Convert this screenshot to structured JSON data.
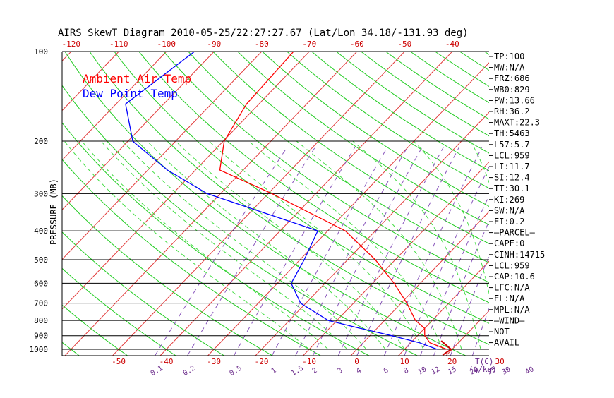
{
  "chart_data": {
    "type": "line",
    "title": "AIRS SkewT Diagram 2010-05-25/22:27:27.67 (Lat/Lon 34.18/-131.93 deg)",
    "ylabel": "PRESSURE (MB)",
    "y_scale": "log-pressure",
    "ylim": [
      1050,
      100
    ],
    "pressure_ticks": [
      100,
      200,
      300,
      400,
      500,
      600,
      700,
      800,
      900,
      1000
    ],
    "temp_ticks_top": [
      -120,
      -110,
      -100,
      -90,
      -80,
      -70,
      -60,
      -50,
      -40
    ],
    "temp_ticks_bottom": [
      -50,
      -40,
      -30,
      -20,
      -10,
      0,
      10,
      20,
      30
    ],
    "temp_axis_unit": "T(C)",
    "mixing_ratio_labels": [
      "0.1",
      "0.2",
      "0.5",
      "1",
      "1.5",
      "2",
      "3",
      "4",
      "6",
      "8",
      "10",
      "12",
      "15",
      "20",
      "25",
      "30",
      "40"
    ],
    "mixing_ratio_unit": "(g/kg)",
    "grid": true,
    "legend_position": "top-left",
    "legend": [
      {
        "label": "Ambient Air Temp",
        "color": "#ff0000"
      },
      {
        "label": "Dew Point Temp",
        "color": "#0000ff"
      }
    ],
    "series": [
      {
        "name": "Ambient Air Temp",
        "color": "#ff0000",
        "points": [
          {
            "p": 100,
            "t": -73.3
          },
          {
            "p": 150,
            "t": -72.6
          },
          {
            "p": 200,
            "t": -69.8
          },
          {
            "p": 250,
            "t": -64.9
          },
          {
            "p": 300,
            "t": -49.2
          },
          {
            "p": 400,
            "t": -26.3
          },
          {
            "p": 500,
            "t": -14.2
          },
          {
            "p": 600,
            "t": -5.5
          },
          {
            "p": 700,
            "t": 1.2
          },
          {
            "p": 800,
            "t": 6.5
          },
          {
            "p": 850,
            "t": 10.0
          },
          {
            "p": 900,
            "t": 11.5
          },
          {
            "p": 950,
            "t": 14.0
          },
          {
            "p": 1000,
            "t": 18.9
          }
        ]
      },
      {
        "name": "Dew Point Temp",
        "color": "#0000ff",
        "points": [
          {
            "p": 100,
            "t": -94.1
          },
          {
            "p": 150,
            "t": -98.0
          },
          {
            "p": 200,
            "t": -89.0
          },
          {
            "p": 250,
            "t": -75.9
          },
          {
            "p": 300,
            "t": -62.8
          },
          {
            "p": 400,
            "t": -32.1
          },
          {
            "p": 500,
            "t": -29.1
          },
          {
            "p": 600,
            "t": -27.1
          },
          {
            "p": 700,
            "t": -21.1
          },
          {
            "p": 800,
            "t": -11.8
          },
          {
            "p": 850,
            "t": -3.5
          },
          {
            "p": 900,
            "t": 4.6
          },
          {
            "p": 950,
            "t": 11.8
          },
          {
            "p": 1000,
            "t": 16.9
          }
        ]
      }
    ],
    "wind_barb_near_surface": true
  },
  "indices": [
    "TP:100",
    "MW:N/A",
    "FRZ:686",
    "WB0:829",
    "PW:13.66",
    "RH:36.2",
    "MAXT:22.3",
    "TH:5463",
    "L57:5.7",
    "LCL:959",
    "LI:11.7",
    "SI:12.4",
    "TT:30.1",
    "KI:269",
    "SW:N/A",
    "EI:0.2",
    "—PARCEL—",
    "CAPE:0",
    "CINH:14715",
    "LCL:959",
    "CAP:10.6",
    "LFC:N/A",
    "EL:N/A",
    "MPL:N/A",
    "—WIND—",
    "NOT",
    "AVAIL"
  ],
  "colors": {
    "temp": "#ff0000",
    "dewpoint": "#0000ff",
    "isotherms": "#e23a3a",
    "dry_adiabats": "#22cc22",
    "moist_adiabats": "#44dd44",
    "mixing_ratio": "#8855bb",
    "pressure_lines": "#000000"
  }
}
